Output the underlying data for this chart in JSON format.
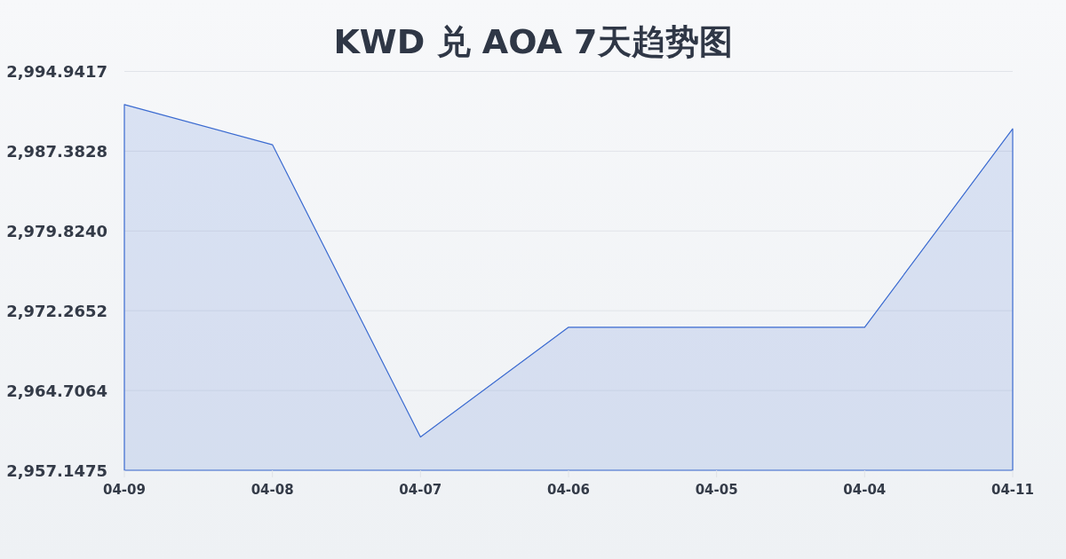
{
  "chart_data": {
    "type": "area",
    "title": "KWD 兑 AOA 7天趋势图",
    "categories": [
      "04-09",
      "04-08",
      "04-07",
      "04-06",
      "04-05",
      "04-04",
      "04-11"
    ],
    "values": [
      2991.8,
      2988.0,
      2960.3,
      2970.7,
      2970.7,
      2970.7,
      2989.5
    ],
    "color": "#3a6ad0",
    "ylim": [
      2957.1475,
      2994.9417
    ],
    "yticks": [
      {
        "value": 2957.1475,
        "label": "2,957.1475"
      },
      {
        "value": 2964.7064,
        "label": "2,964.7064"
      },
      {
        "value": 2972.2652,
        "label": "2,972.2652"
      },
      {
        "value": 2979.824,
        "label": "2,979.8240"
      },
      {
        "value": 2987.3828,
        "label": "2,987.3828"
      },
      {
        "value": 2994.9417,
        "label": "2,994.9417"
      }
    ],
    "grid": "y"
  }
}
